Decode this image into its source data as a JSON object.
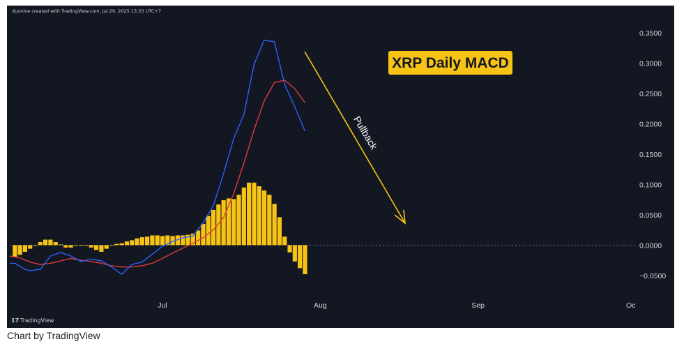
{
  "header": {
    "text": "duonine created with TradingView.com, Jul 29, 2025 13:33 UTC+7"
  },
  "brand": {
    "logo": "17",
    "name": "TradingView"
  },
  "caption": "Chart by TradingView",
  "chart_data": {
    "type": "line",
    "title": "XRP Daily MACD",
    "colors": {
      "background": "#131722",
      "macd": "#2962ff",
      "signal": "#e03b3b",
      "histogram": "#f7c415",
      "title_bg": "#f7c415",
      "title_text": "#131722",
      "arrow": "#f7c415",
      "zero_line": "#6a6d78"
    },
    "yaxis": {
      "ticks": [
        0.35,
        0.3,
        0.25,
        0.2,
        0.15,
        0.1,
        0.05,
        0.0,
        -0.05
      ],
      "tick_labels": [
        "0.3500",
        "0.3000",
        "0.2500",
        "0.2000",
        "0.1500",
        "0.1000",
        "0.0500",
        "0.0000",
        "−0.0500"
      ],
      "ylim": [
        -0.087,
        0.38
      ]
    },
    "xaxis": {
      "ticks": [
        {
          "label": "Jul",
          "day": 30
        },
        {
          "label": "Aug",
          "day": 61
        },
        {
          "label": "Sep",
          "day": 92
        },
        {
          "label": "Oc",
          "day": 122
        }
      ],
      "xlim": [
        0,
        123
      ]
    },
    "series": [
      {
        "key": "histogram",
        "type": "bar",
        "x": [
          1,
          2,
          3,
          4,
          5,
          6,
          7,
          8,
          9,
          10,
          11,
          12,
          13,
          14,
          15,
          16,
          17,
          18,
          19,
          20,
          21,
          22,
          23,
          24,
          25,
          26,
          27,
          28,
          29,
          30,
          31,
          32,
          33,
          34,
          35,
          36,
          37,
          38,
          39,
          40,
          41,
          42,
          43,
          44,
          45,
          46,
          47,
          48,
          49,
          50,
          51,
          52,
          53,
          54,
          55,
          56,
          57,
          58
        ],
        "values": [
          -0.02,
          -0.016,
          -0.011,
          -0.006,
          -0.001,
          0.005,
          0.009,
          0.009,
          0.005,
          0.001,
          -0.004,
          -0.004,
          -0.001,
          -0.001,
          -0.001,
          -0.004,
          -0.008,
          -0.011,
          -0.006,
          -0.001,
          0.002,
          0.003,
          0.006,
          0.008,
          0.011,
          0.013,
          0.014,
          0.016,
          0.016,
          0.015,
          0.016,
          0.015,
          0.016,
          0.016,
          0.017,
          0.019,
          0.024,
          0.035,
          0.048,
          0.058,
          0.067,
          0.074,
          0.077,
          0.076,
          0.083,
          0.095,
          0.103,
          0.103,
          0.097,
          0.09,
          0.083,
          0.068,
          0.046,
          0.014,
          -0.012,
          -0.027,
          -0.038,
          -0.048
        ]
      },
      {
        "key": "macd",
        "type": "line",
        "x": [
          0,
          1,
          3,
          4,
          6,
          8,
          10,
          12,
          14,
          16,
          18,
          20,
          22,
          24,
          26,
          28,
          30,
          32,
          34,
          36,
          38,
          40,
          42,
          44,
          46,
          48,
          50,
          52,
          54,
          56,
          58
        ],
        "values": [
          -0.03,
          -0.03,
          -0.04,
          -0.042,
          -0.04,
          -0.018,
          -0.012,
          -0.018,
          -0.027,
          -0.023,
          -0.026,
          -0.036,
          -0.048,
          -0.032,
          -0.028,
          -0.015,
          -0.002,
          0.006,
          0.012,
          0.015,
          0.037,
          0.065,
          0.118,
          0.176,
          0.215,
          0.298,
          0.338,
          0.335,
          0.265,
          0.228,
          0.188
        ]
      },
      {
        "key": "signal",
        "type": "line",
        "x": [
          0,
          2,
          4,
          6,
          8,
          10,
          12,
          14,
          16,
          18,
          20,
          22,
          24,
          26,
          28,
          30,
          32,
          34,
          36,
          38,
          40,
          42,
          44,
          46,
          48,
          50,
          52,
          54,
          56,
          58
        ],
        "values": [
          -0.018,
          -0.021,
          -0.028,
          -0.032,
          -0.03,
          -0.026,
          -0.022,
          -0.025,
          -0.027,
          -0.03,
          -0.034,
          -0.036,
          -0.036,
          -0.034,
          -0.03,
          -0.022,
          -0.013,
          -0.005,
          0.003,
          0.012,
          0.025,
          0.045,
          0.085,
          0.135,
          0.19,
          0.238,
          0.268,
          0.272,
          0.258,
          0.235
        ]
      }
    ],
    "annotations": [
      {
        "type": "label",
        "text": "XRP Daily MACD"
      },
      {
        "type": "arrow",
        "text": "Pullback",
        "from": {
          "day": 60,
          "y": 0.327
        },
        "to": {
          "day": 77,
          "y": 0.04
        }
      }
    ]
  }
}
